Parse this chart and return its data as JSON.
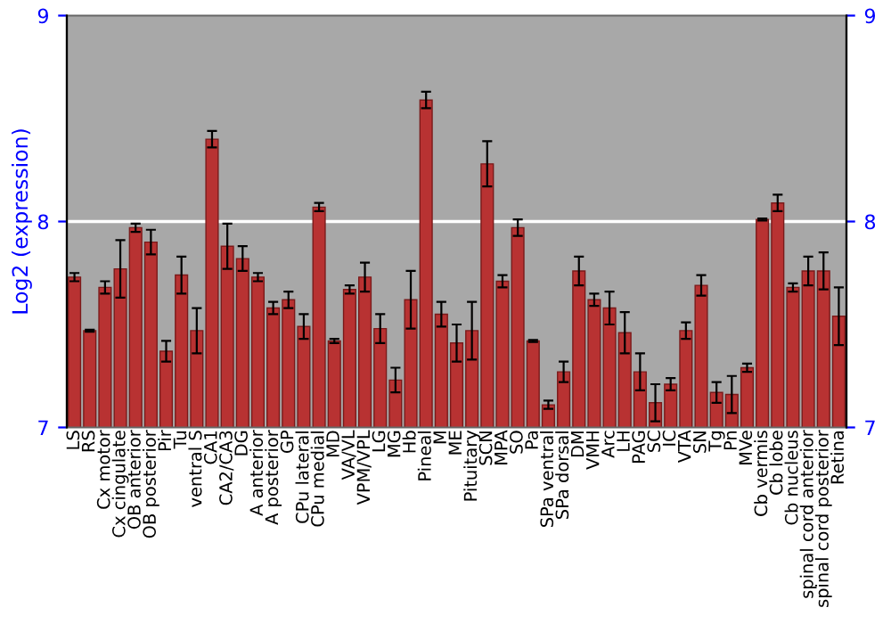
{
  "chart_data": {
    "type": "bar",
    "ylabel": "Log2 (expression)",
    "categories": [
      "LS",
      "RS",
      "Cx motor",
      "Cx cingulate",
      "OB anterior",
      "OB posterior",
      "Pir",
      "Tu",
      "ventral S",
      "CA1",
      "CA2/CA3",
      "DG",
      "A anterior",
      "A posterior",
      "GP",
      "CPu lateral",
      "CPu medial",
      "MD",
      "VA/VL",
      "VPM/VPL",
      "LG",
      "MG",
      "Hb",
      "Pineal",
      "M",
      "ME",
      "Pituitary",
      "SCN",
      "MPA",
      "SO",
      "Pa",
      "SPa ventral",
      "SPa dorsal",
      "DM",
      "VMH",
      "Arc",
      "LH",
      "PAG",
      "SC",
      "IC",
      "VTA",
      "SN",
      "Tg",
      "Pn",
      "MVe",
      "Cb vermis",
      "Cb lobe",
      "Cb nucleus",
      "spinal cord anterior",
      "spinal cord posterior",
      "Retina"
    ],
    "values": [
      7.73,
      7.47,
      7.68,
      7.77,
      7.97,
      7.9,
      7.37,
      7.74,
      7.47,
      8.4,
      7.88,
      7.82,
      7.73,
      7.58,
      7.62,
      7.49,
      8.07,
      7.42,
      7.67,
      7.73,
      7.48,
      7.23,
      7.62,
      8.59,
      7.55,
      7.41,
      7.47,
      8.28,
      7.71,
      7.97,
      7.42,
      7.11,
      7.27,
      7.76,
      7.62,
      7.58,
      7.46,
      7.27,
      7.12,
      7.21,
      7.47,
      7.69,
      7.17,
      7.16,
      7.29,
      8.01,
      8.09,
      7.68,
      7.76,
      7.76,
      7.54
    ],
    "errors": [
      0.02,
      0.005,
      0.03,
      0.14,
      0.02,
      0.06,
      0.05,
      0.09,
      0.11,
      0.04,
      0.11,
      0.06,
      0.02,
      0.03,
      0.04,
      0.06,
      0.02,
      0.01,
      0.02,
      0.07,
      0.07,
      0.06,
      0.14,
      0.04,
      0.06,
      0.09,
      0.14,
      0.11,
      0.03,
      0.04,
      0.005,
      0.02,
      0.05,
      0.07,
      0.03,
      0.08,
      0.1,
      0.09,
      0.09,
      0.03,
      0.04,
      0.05,
      0.05,
      0.09,
      0.02,
      0.005,
      0.04,
      0.02,
      0.07,
      0.09,
      0.14
    ],
    "color": "#b83232",
    "ylim": [
      7,
      9
    ],
    "yticks": [
      7,
      8,
      9
    ],
    "y2lim": [
      7,
      9
    ],
    "y2ticks": [
      7,
      8,
      9
    ],
    "ref_lines": [
      {
        "axis": "y",
        "value": 8,
        "color": "#ffffff"
      }
    ]
  }
}
